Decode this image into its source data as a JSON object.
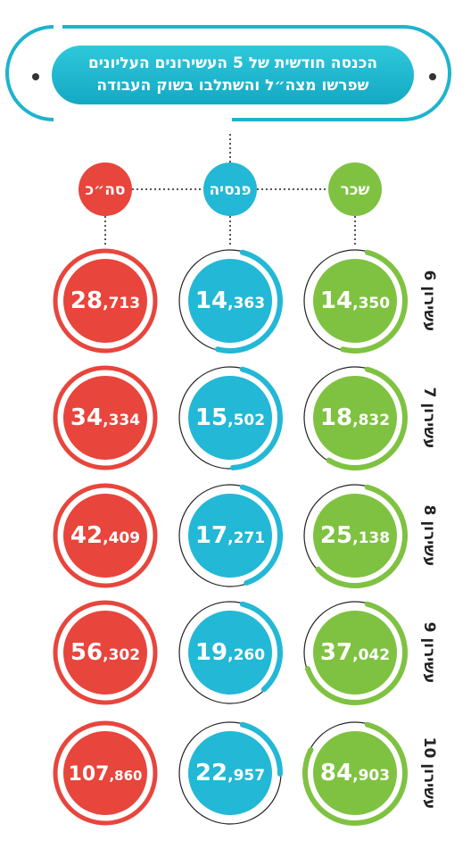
{
  "title": {
    "line1": "הכנסה חודשית של 5 העשירונים העליונים",
    "line2": "שפרשו מצה״ל והשתלבו בשוק העבודה"
  },
  "colors": {
    "salary": "#7fc241",
    "pension": "#22b8d6",
    "total": "#e8453c",
    "title": "#1db4cc"
  },
  "chart_data": {
    "type": "table",
    "title": "הכנסה חודשית של 5 העשירונים העליונים שפרשו מצה״ל והשתלבו בשוק העבודה",
    "columns": [
      "שכר",
      "פנסיה",
      "סה״כ"
    ],
    "rows": [
      "עשירון 6",
      "עשירון 7",
      "עשירון 8",
      "עשירון 9",
      "עשירון 10"
    ],
    "series": [
      {
        "name": "שכר",
        "values": [
          14350,
          18832,
          25138,
          37042,
          84903
        ]
      },
      {
        "name": "פנסיה",
        "values": [
          14363,
          15502,
          17271,
          19260,
          22957
        ]
      },
      {
        "name": "סה״כ",
        "values": [
          28713,
          34334,
          42409,
          56302,
          107860
        ]
      }
    ]
  },
  "labels": {
    "salary_values": [
      "14,350",
      "18,832",
      "25,138",
      "37,042",
      "84,903"
    ],
    "pension_values": [
      "14,363",
      "15,502",
      "17,271",
      "19,260",
      "22,957"
    ],
    "total_values": [
      "28,713",
      "34,334",
      "42,409",
      "56,302",
      "107,860"
    ]
  }
}
